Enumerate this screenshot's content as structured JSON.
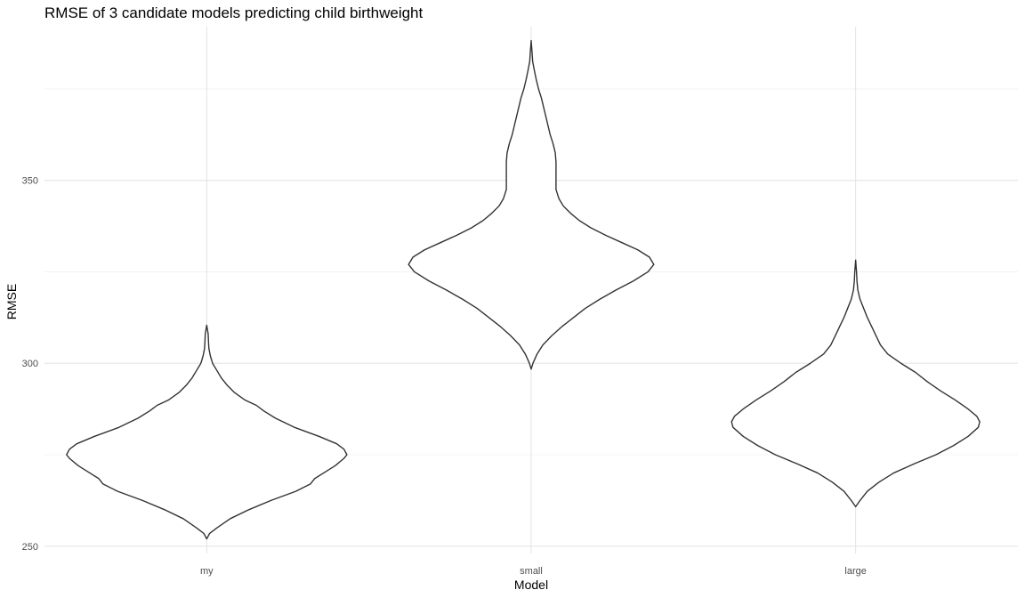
{
  "chart_data": {
    "type": "violin",
    "title": "RMSE of 3 candidate models predicting child birthweight",
    "xlabel": "Model",
    "ylabel": "RMSE",
    "categories": [
      "my",
      "small",
      "large"
    ],
    "yticks": [
      250,
      300,
      350
    ],
    "ylim": [
      248,
      392
    ],
    "grid": true,
    "legend": "none",
    "colors": {
      "outline": "#333333",
      "fill": "#ffffff",
      "grid": "#e5e5e5",
      "text": "#000000",
      "tick_text": "#4d4d4d"
    },
    "series": [
      {
        "category": "my",
        "min": 252,
        "max": 310.4,
        "density_profile": [
          [
            252.0,
            0.0
          ],
          [
            253.5,
            0.02
          ],
          [
            255.0,
            0.07
          ],
          [
            257.5,
            0.16
          ],
          [
            260.0,
            0.29
          ],
          [
            262.5,
            0.44
          ],
          [
            265.0,
            0.61
          ],
          [
            267.0,
            0.71
          ],
          [
            268.5,
            0.74
          ],
          [
            270.0,
            0.8
          ],
          [
            272.0,
            0.88
          ],
          [
            274.0,
            0.94
          ],
          [
            275.0,
            0.96
          ],
          [
            276.5,
            0.94
          ],
          [
            278.0,
            0.89
          ],
          [
            280.0,
            0.77
          ],
          [
            282.5,
            0.6
          ],
          [
            285.0,
            0.47
          ],
          [
            287.0,
            0.39
          ],
          [
            288.5,
            0.34
          ],
          [
            290.0,
            0.26
          ],
          [
            292.0,
            0.19
          ],
          [
            294.0,
            0.14
          ],
          [
            296.0,
            0.1
          ],
          [
            298.0,
            0.07
          ],
          [
            300.0,
            0.04
          ],
          [
            302.0,
            0.025
          ],
          [
            304.0,
            0.015
          ],
          [
            306.0,
            0.012
          ],
          [
            308.0,
            0.01
          ],
          [
            310.4,
            0.0
          ]
        ]
      },
      {
        "category": "small",
        "min": 298.4,
        "max": 388.2,
        "density_profile": [
          [
            298.4,
            0.0
          ],
          [
            300.0,
            0.012
          ],
          [
            302.5,
            0.04
          ],
          [
            305.0,
            0.08
          ],
          [
            307.5,
            0.14
          ],
          [
            310.0,
            0.21
          ],
          [
            312.5,
            0.29
          ],
          [
            315.0,
            0.37
          ],
          [
            317.5,
            0.47
          ],
          [
            320.0,
            0.58
          ],
          [
            322.5,
            0.7
          ],
          [
            325.0,
            0.8
          ],
          [
            327.0,
            0.84
          ],
          [
            329.0,
            0.81
          ],
          [
            331.0,
            0.73
          ],
          [
            333.0,
            0.62
          ],
          [
            335.0,
            0.51
          ],
          [
            337.0,
            0.41
          ],
          [
            339.0,
            0.33
          ],
          [
            341.0,
            0.27
          ],
          [
            343.0,
            0.22
          ],
          [
            345.0,
            0.19
          ],
          [
            347.5,
            0.17
          ],
          [
            350.0,
            0.17
          ],
          [
            352.5,
            0.17
          ],
          [
            355.0,
            0.17
          ],
          [
            357.5,
            0.165
          ],
          [
            360.0,
            0.15
          ],
          [
            362.5,
            0.13
          ],
          [
            365.0,
            0.115
          ],
          [
            367.5,
            0.1
          ],
          [
            370.0,
            0.085
          ],
          [
            372.5,
            0.07
          ],
          [
            375.0,
            0.05
          ],
          [
            377.5,
            0.035
          ],
          [
            380.0,
            0.022
          ],
          [
            382.5,
            0.01
          ],
          [
            385.0,
            0.006
          ],
          [
            388.2,
            0.0
          ]
        ]
      },
      {
        "category": "large",
        "min": 260.8,
        "max": 328.2,
        "density_profile": [
          [
            260.8,
            0.0
          ],
          [
            262.5,
            0.03
          ],
          [
            265.0,
            0.08
          ],
          [
            267.5,
            0.16
          ],
          [
            270.0,
            0.26
          ],
          [
            272.5,
            0.4
          ],
          [
            275.0,
            0.55
          ],
          [
            277.5,
            0.67
          ],
          [
            280.0,
            0.77
          ],
          [
            282.5,
            0.84
          ],
          [
            284.0,
            0.85
          ],
          [
            285.5,
            0.83
          ],
          [
            287.5,
            0.77
          ],
          [
            290.0,
            0.68
          ],
          [
            292.5,
            0.58
          ],
          [
            295.0,
            0.49
          ],
          [
            297.5,
            0.41
          ],
          [
            300.0,
            0.31
          ],
          [
            302.5,
            0.22
          ],
          [
            305.0,
            0.17
          ],
          [
            307.5,
            0.14
          ],
          [
            310.0,
            0.11
          ],
          [
            312.5,
            0.08
          ],
          [
            315.0,
            0.055
          ],
          [
            317.5,
            0.03
          ],
          [
            320.0,
            0.015
          ],
          [
            322.5,
            0.009
          ],
          [
            325.0,
            0.006
          ],
          [
            328.2,
            0.0
          ]
        ]
      }
    ]
  }
}
